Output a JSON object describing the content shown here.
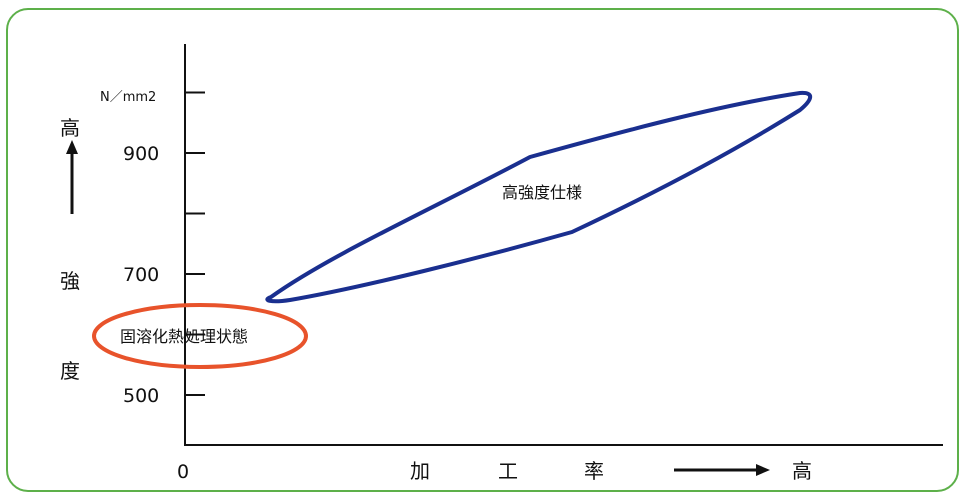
{
  "chart_data": {
    "type": "scatter",
    "title": "",
    "ylabel_chars": [
      "高",
      "強",
      "度"
    ],
    "x_axis": {
      "origin_label": "0",
      "label_chars": [
        "加",
        "工",
        "率"
      ],
      "arrow_end_label": "高"
    },
    "y_axis": {
      "unit": "N／mm2",
      "ticks": [
        {
          "value": 500,
          "label": "500"
        },
        {
          "value": 600,
          "label": ""
        },
        {
          "value": 700,
          "label": "700"
        },
        {
          "value": 800,
          "label": ""
        },
        {
          "value": 900,
          "label": "900"
        },
        {
          "value": 1000,
          "label": ""
        }
      ],
      "ylim": [
        420,
        1200
      ]
    },
    "regions": [
      {
        "name": "固溶化熱処理状態",
        "color": "#e8532b",
        "strength_center": 600
      },
      {
        "name": "高強度仕様",
        "color": "#1a2f8f"
      }
    ],
    "grid": false,
    "colors": {
      "frame": "#5db04a",
      "axis": "#111111",
      "solution_region": "#e8532b",
      "high_strength_region": "#1a2f8f"
    }
  }
}
